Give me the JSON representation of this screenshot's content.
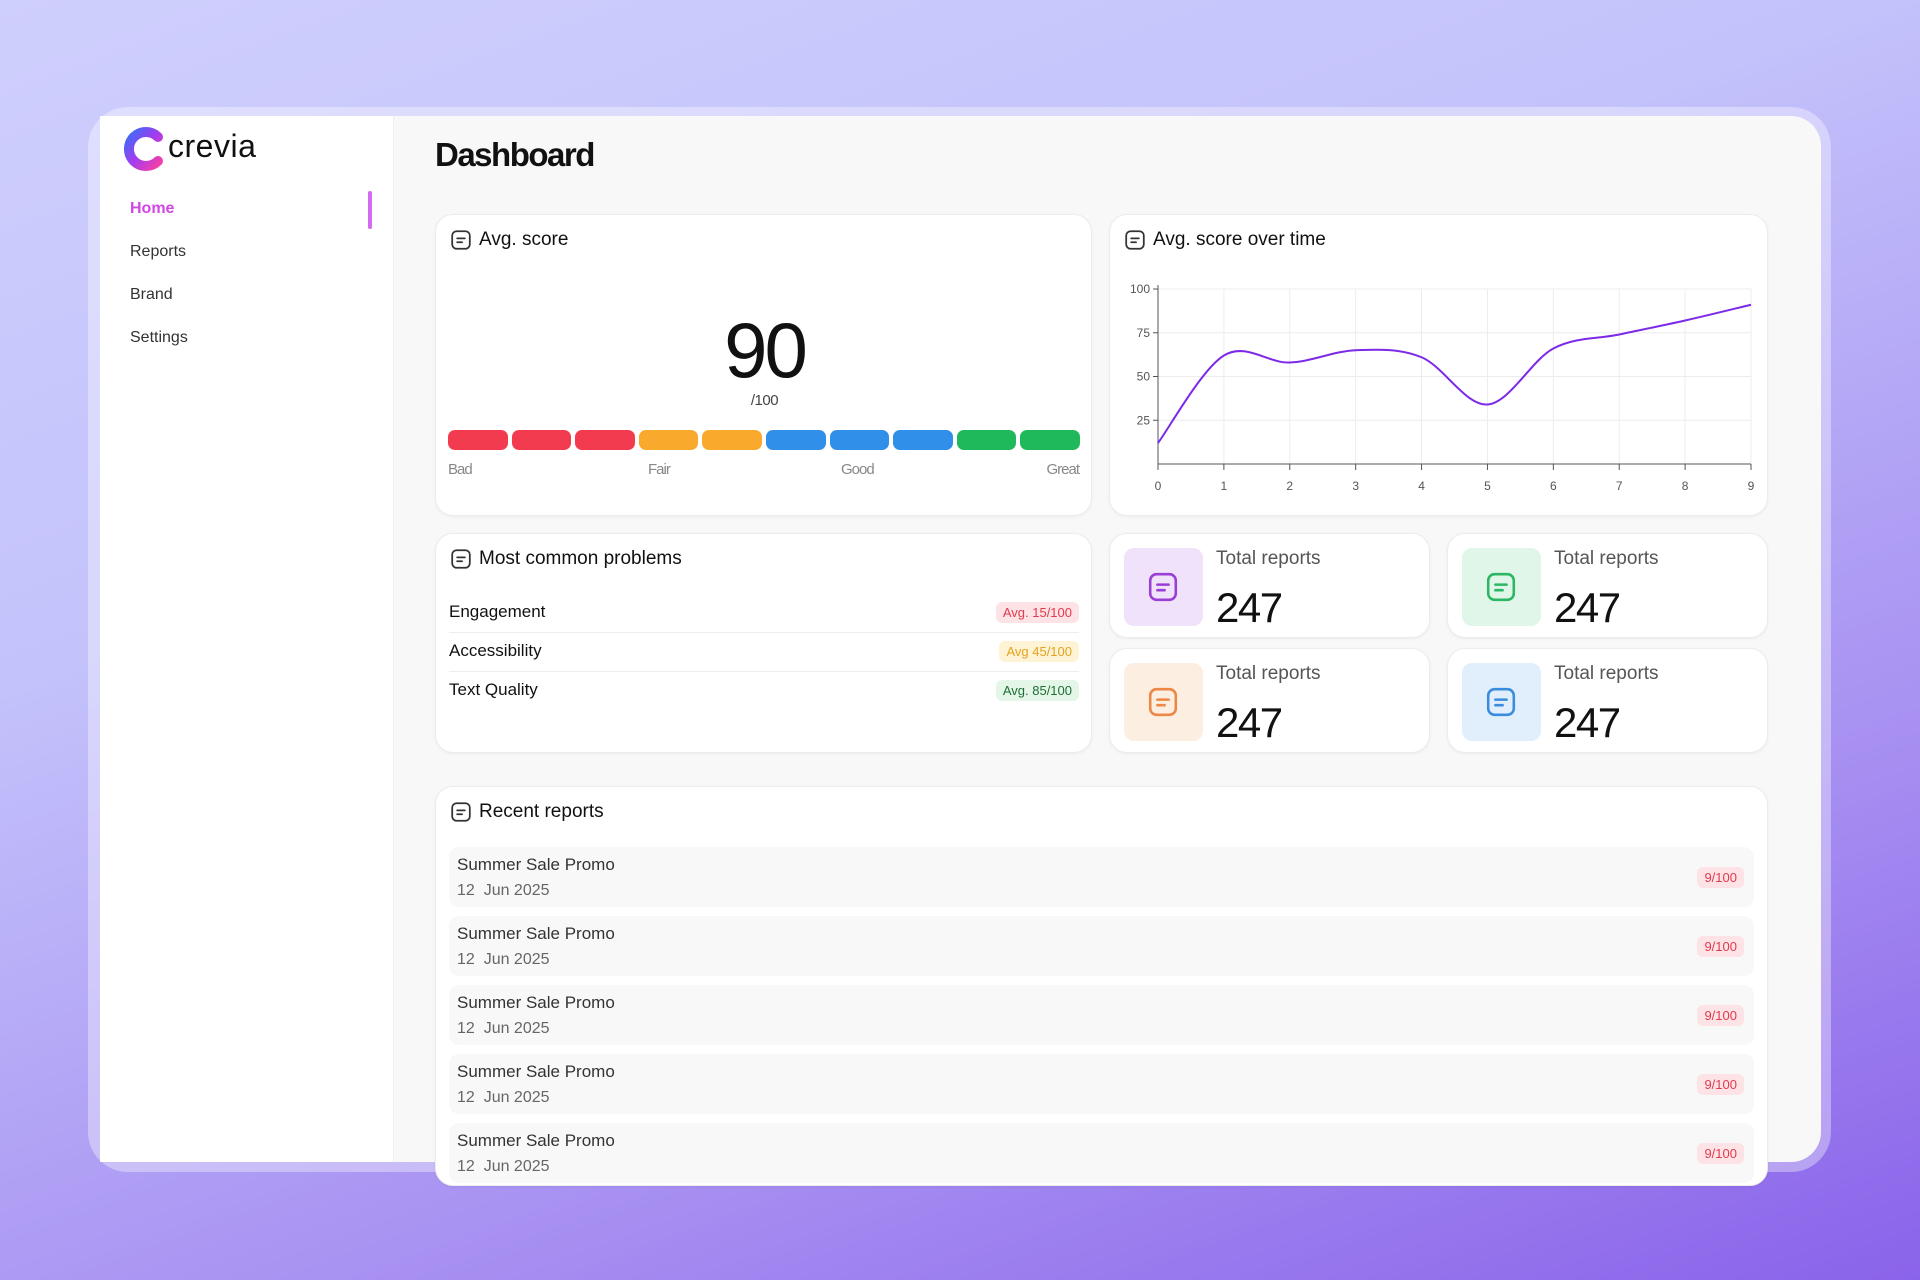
{
  "brand": "crevia",
  "nav": [
    "Home",
    "Reports",
    "Brand",
    "Settings"
  ],
  "page_title": "Dashboard",
  "avg_score": {
    "title": "Avg. score",
    "value": 90,
    "max_label": "/100",
    "scale_labels": [
      "Bad",
      "Fair",
      "Good",
      "Great"
    ]
  },
  "chart_data": {
    "type": "line",
    "title": "Avg. score over time",
    "x": [
      0,
      1,
      2,
      3,
      4,
      5,
      6,
      7,
      8,
      9
    ],
    "values": [
      12,
      62,
      58,
      65,
      61,
      34,
      66,
      74,
      82,
      91
    ],
    "color": "#7c2ae8",
    "xlim": [
      0,
      9
    ],
    "ylim": [
      0,
      100
    ],
    "xticks": [
      0,
      1,
      2,
      3,
      4,
      5,
      6,
      7,
      8,
      9
    ],
    "yticks": [
      25,
      50,
      75,
      100
    ],
    "grid": true
  },
  "problems": {
    "title": "Most common problems",
    "items": [
      {
        "name": "Engagement",
        "badge": "Avg. 15/100"
      },
      {
        "name": "Accessibility",
        "badge": "Avg 45/100"
      },
      {
        "name": "Text Quality",
        "badge": "Avg. 85/100"
      }
    ]
  },
  "stats": [
    {
      "label": "Total reports",
      "value": 247
    },
    {
      "label": "Total reports",
      "value": 247
    },
    {
      "label": "Total reports",
      "value": 247
    },
    {
      "label": "Total reports",
      "value": 247
    }
  ],
  "recent": {
    "title": "Recent reports",
    "items": [
      {
        "name": "Summer Sale Promo",
        "date": "12  Jun 2025",
        "score": "9/100"
      },
      {
        "name": "Summer Sale Promo",
        "date": "12  Jun 2025",
        "score": "9/100"
      },
      {
        "name": "Summer Sale Promo",
        "date": "12  Jun 2025",
        "score": "9/100"
      },
      {
        "name": "Summer Sale Promo",
        "date": "12  Jun 2025",
        "score": "9/100"
      },
      {
        "name": "Summer Sale Promo",
        "date": "12  Jun 2025",
        "score": "9/100"
      }
    ]
  }
}
